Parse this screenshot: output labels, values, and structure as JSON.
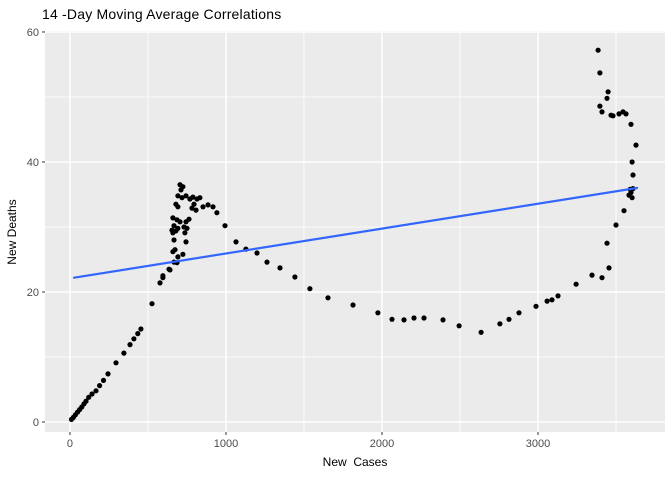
{
  "page": {
    "background": "#FFFFFF"
  },
  "chart_data": {
    "type": "scatter",
    "title": "14 -Day Moving Average Correlations",
    "xlabel": "New  Cases",
    "ylabel": "New Deaths",
    "x_ticks": [
      0,
      1000,
      2000,
      3000
    ],
    "y_ticks": [
      0,
      20,
      40,
      60
    ],
    "x_minor": [
      500,
      1500,
      2500,
      3500
    ],
    "y_minor": [
      10,
      30,
      50
    ],
    "xlim": [
      -160,
      3814
    ],
    "ylim": [
      -1.54,
      60.15
    ],
    "grid": true,
    "legend": false,
    "panel_bg": "#EBEBEB",
    "grid_color": "#FFFFFF",
    "point_color": "#000000",
    "trend_color": "#3366FF",
    "tick_color": "#333333",
    "tick_label_color": "#4D4D4D",
    "trend_line": {
      "x": [
        26,
        3635
      ],
      "y": [
        22.2,
        36.0
      ]
    },
    "points": [
      [
        10,
        0.4
      ],
      [
        22,
        0.7
      ],
      [
        35,
        1.1
      ],
      [
        48,
        1.5
      ],
      [
        62,
        1.9
      ],
      [
        76,
        2.3
      ],
      [
        90,
        2.8
      ],
      [
        103,
        3.2
      ],
      [
        120,
        3.8
      ],
      [
        141,
        4.3
      ],
      [
        167,
        4.8
      ],
      [
        190,
        5.6
      ],
      [
        215,
        6.4
      ],
      [
        244,
        7.4
      ],
      [
        295,
        9.1
      ],
      [
        346,
        10.6
      ],
      [
        385,
        11.9
      ],
      [
        410,
        12.8
      ],
      [
        435,
        13.6
      ],
      [
        455,
        14.3
      ],
      [
        526,
        18.2
      ],
      [
        596,
        22.2
      ],
      [
        635,
        23.5
      ],
      [
        577,
        21.4
      ],
      [
        596,
        22.5
      ],
      [
        641,
        23.4
      ],
      [
        667,
        24.6
      ],
      [
        686,
        24.5
      ],
      [
        660,
        26.2
      ],
      [
        673,
        26.5
      ],
      [
        692,
        25.4
      ],
      [
        724,
        25.8
      ],
      [
        667,
        28.0
      ],
      [
        744,
        27.7
      ],
      [
        654,
        29.5
      ],
      [
        660,
        29.1
      ],
      [
        679,
        29.4
      ],
      [
        737,
        29.1
      ],
      [
        667,
        30.2
      ],
      [
        692,
        29.8
      ],
      [
        660,
        31.4
      ],
      [
        686,
        31.1
      ],
      [
        705,
        30.8
      ],
      [
        731,
        30.0
      ],
      [
        750,
        29.8
      ],
      [
        744,
        30.8
      ],
      [
        763,
        31.2
      ],
      [
        679,
        33.5
      ],
      [
        692,
        33.1
      ],
      [
        692,
        34.8
      ],
      [
        718,
        34.5
      ],
      [
        712,
        35.7
      ],
      [
        705,
        36.5
      ],
      [
        724,
        36.2
      ],
      [
        744,
        34.8
      ],
      [
        769,
        34.3
      ],
      [
        788,
        34.6
      ],
      [
        814,
        34.3
      ],
      [
        833,
        34.5
      ],
      [
        795,
        33.5
      ],
      [
        782,
        32.9
      ],
      [
        808,
        32.6
      ],
      [
        853,
        33.1
      ],
      [
        885,
        33.4
      ],
      [
        917,
        33.1
      ],
      [
        942,
        32.2
      ],
      [
        994,
        30.2
      ],
      [
        1064,
        27.7
      ],
      [
        1128,
        26.6
      ],
      [
        1199,
        26.0
      ],
      [
        1263,
        24.6
      ],
      [
        1346,
        23.7
      ],
      [
        1442,
        22.3
      ],
      [
        1538,
        20.5
      ],
      [
        1654,
        19.1
      ],
      [
        1814,
        18.0
      ],
      [
        1974,
        16.8
      ],
      [
        2064,
        15.8
      ],
      [
        2141,
        15.7
      ],
      [
        2205,
        16.0
      ],
      [
        2269,
        16.0
      ],
      [
        2391,
        15.7
      ],
      [
        2494,
        14.8
      ],
      [
        2635,
        13.8
      ],
      [
        2756,
        15.1
      ],
      [
        2814,
        15.8
      ],
      [
        2878,
        16.8
      ],
      [
        2987,
        17.8
      ],
      [
        3058,
        18.6
      ],
      [
        3090,
        18.8
      ],
      [
        3128,
        19.4
      ],
      [
        3244,
        21.2
      ],
      [
        3346,
        22.6
      ],
      [
        3410,
        22.2
      ],
      [
        3455,
        23.7
      ],
      [
        3442,
        27.5
      ],
      [
        3500,
        30.3
      ],
      [
        3551,
        32.5
      ],
      [
        3583,
        34.9
      ],
      [
        3596,
        35.3
      ],
      [
        3590,
        35.8
      ],
      [
        3609,
        35.9
      ],
      [
        3603,
        34.5
      ],
      [
        3609,
        38.0
      ],
      [
        3603,
        40.0
      ],
      [
        3628,
        42.6
      ],
      [
        3596,
        45.8
      ],
      [
        3564,
        47.4
      ],
      [
        3545,
        47.7
      ],
      [
        3519,
        47.4
      ],
      [
        3481,
        47.1
      ],
      [
        3468,
        47.2
      ],
      [
        3410,
        47.7
      ],
      [
        3397,
        48.6
      ],
      [
        3442,
        49.8
      ],
      [
        3449,
        50.8
      ],
      [
        3397,
        53.7
      ],
      [
        3385,
        57.2
      ]
    ]
  }
}
